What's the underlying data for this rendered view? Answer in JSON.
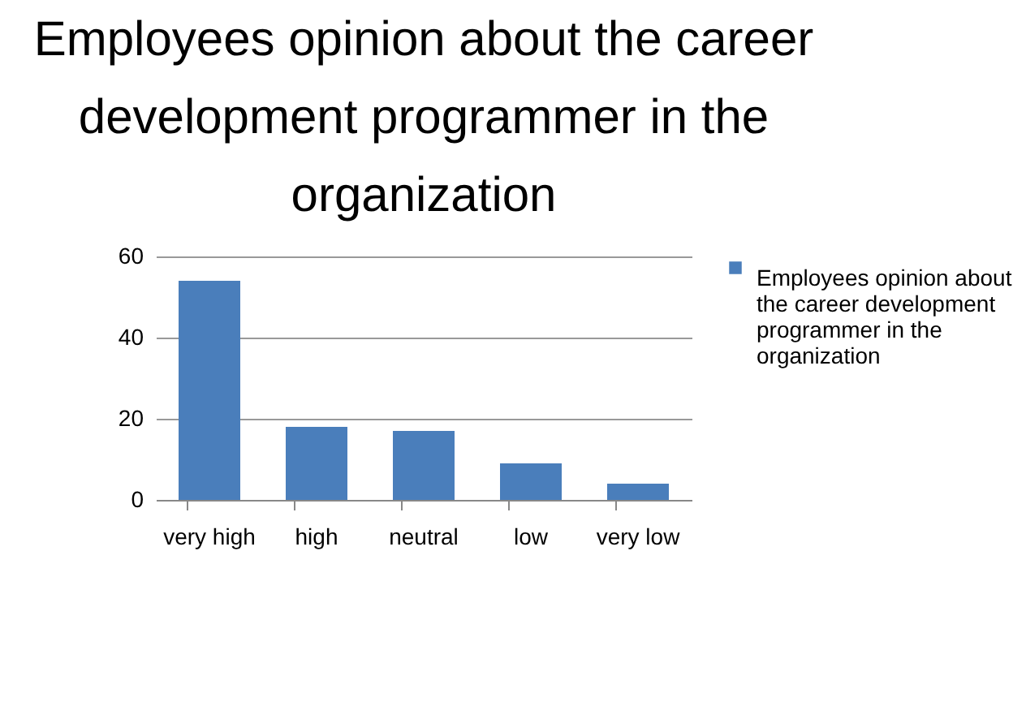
{
  "chart_data": {
    "type": "bar",
    "title": "Employees opinion about the career development programmer in the organization",
    "categories": [
      "very high",
      "high",
      "neutral",
      "low",
      "very low"
    ],
    "series": [
      {
        "name": "Employees opinion about the career development programmer in the organization",
        "color": "#4a7ebb",
        "values": [
          54,
          18,
          17,
          9,
          4
        ]
      }
    ],
    "ylim": [
      0,
      60
    ],
    "yticks": [
      0,
      20,
      40,
      60
    ],
    "grid": "y",
    "legend": "right"
  }
}
